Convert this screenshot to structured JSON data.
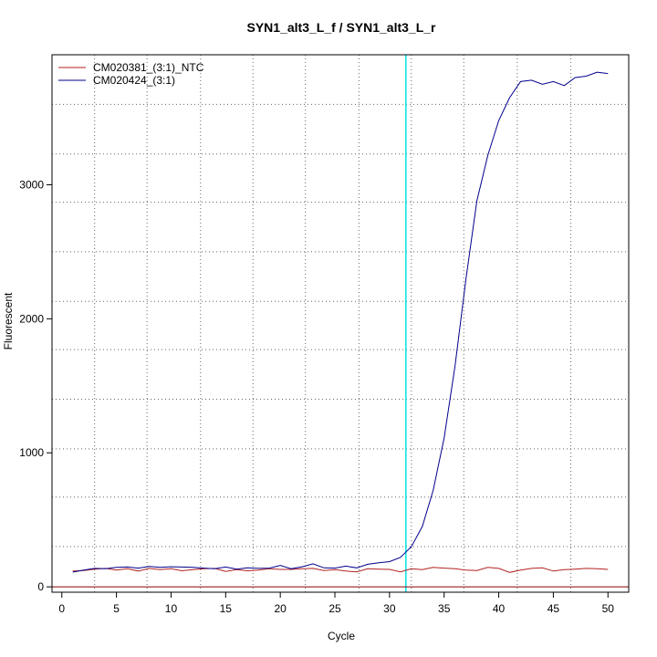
{
  "chart_data": {
    "type": "line",
    "title": "SYN1_alt3_L_f / SYN1_alt3_L_r",
    "xlabel": "Cycle",
    "ylabel": "Fluorescent",
    "xlim": [
      -0.9,
      51.9
    ],
    "ylim": [
      -40,
      3970
    ],
    "x_ticks": [
      0,
      5,
      10,
      15,
      20,
      25,
      30,
      35,
      40,
      45,
      50
    ],
    "y_ticks": [
      0,
      1000,
      2000,
      3000
    ],
    "x_grid": [
      3,
      7.8,
      12.7,
      17.5,
      22.3,
      27.2,
      32,
      36.8,
      41.7,
      46.6
    ],
    "y_grid": [
      300,
      670,
      1030,
      1400,
      1770,
      2130,
      2500,
      2870,
      3230,
      3600
    ],
    "grid": true,
    "legend_position": "top-left",
    "threshold": {
      "x": 31.5,
      "color": "#00E5E5"
    },
    "baseline": {
      "y": 0,
      "color": "#8B0000"
    },
    "series": [
      {
        "name": "CM020381_(3:1)_NTC",
        "color": "#B22222",
        "x": [
          1,
          2,
          3,
          4,
          5,
          6,
          7,
          8,
          9,
          10,
          11,
          12,
          13,
          14,
          15,
          16,
          17,
          18,
          19,
          20,
          21,
          22,
          23,
          24,
          25,
          26,
          27,
          28,
          29,
          30,
          31,
          32,
          33,
          34,
          35,
          36,
          37,
          38,
          39,
          40,
          41,
          42,
          43,
          44,
          45,
          46,
          47,
          48,
          49,
          50
        ],
        "values": [
          118,
          122,
          132,
          138,
          125,
          135,
          118,
          138,
          128,
          135,
          120,
          128,
          135,
          138,
          115,
          128,
          120,
          125,
          135,
          130,
          130,
          135,
          138,
          122,
          128,
          118,
          112,
          135,
          132,
          130,
          112,
          135,
          128,
          145,
          140,
          135,
          125,
          122,
          145,
          138,
          108,
          125,
          138,
          142,
          118,
          128,
          132,
          138,
          135,
          130
        ]
      },
      {
        "name": "CM020424_(3:1)",
        "color": "#00008B",
        "x": [
          1,
          2,
          3,
          4,
          5,
          6,
          7,
          8,
          9,
          10,
          11,
          12,
          13,
          14,
          15,
          16,
          17,
          18,
          19,
          20,
          21,
          22,
          23,
          24,
          25,
          26,
          27,
          28,
          29,
          30,
          31,
          32,
          33,
          34,
          35,
          36,
          37,
          38,
          39,
          40,
          41,
          42,
          43,
          44,
          45,
          46,
          47,
          48,
          49,
          50
        ],
        "values": [
          110,
          125,
          138,
          135,
          145,
          148,
          140,
          152,
          145,
          150,
          148,
          145,
          140,
          135,
          148,
          132,
          142,
          138,
          140,
          160,
          135,
          150,
          172,
          142,
          140,
          155,
          142,
          168,
          180,
          188,
          220,
          300,
          450,
          720,
          1110,
          1650,
          2300,
          2880,
          3220,
          3480,
          3650,
          3770,
          3780,
          3750,
          3770,
          3740,
          3800,
          3810,
          3840,
          3830
        ]
      }
    ]
  }
}
